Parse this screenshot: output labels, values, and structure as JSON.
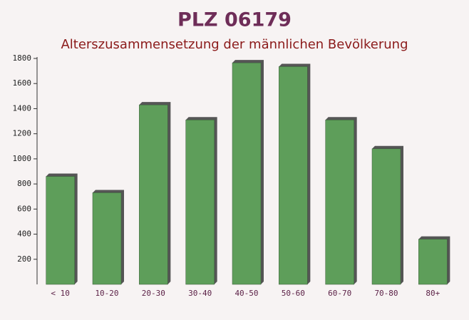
{
  "chart_data": {
    "type": "bar",
    "title": "PLZ 06179",
    "subtitle": "Alterszusammensetzung der männlichen Bevölkerung",
    "categories": [
      "< 10",
      "10-20",
      "20-30",
      "30-40",
      "40-50",
      "50-60",
      "60-70",
      "70-80",
      "80+"
    ],
    "values": [
      860,
      730,
      1430,
      1310,
      1765,
      1735,
      1310,
      1080,
      360
    ],
    "color": "#5e9e5a",
    "ylim": [
      0,
      1800
    ],
    "yticks": [
      200,
      400,
      600,
      800,
      1000,
      1200,
      1400,
      1600,
      1800
    ]
  }
}
